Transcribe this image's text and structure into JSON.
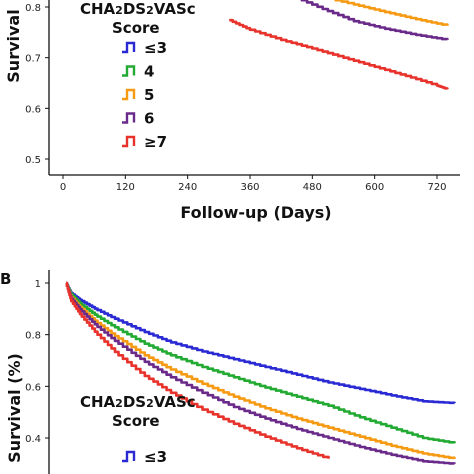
{
  "chart_data": [
    {
      "type": "line",
      "panel_label": "",
      "xlabel": "Follow-up (Days)",
      "ylabel": "Survival",
      "xticks": [
        "0",
        "120",
        "240",
        "360",
        "480",
        "600",
        "720"
      ],
      "yticks": [
        "0.5",
        "0.6",
        "0.7",
        "0.8"
      ],
      "xlim": [
        0,
        740
      ],
      "ylim": [
        0.5,
        0.8
      ],
      "legend_title": "CHA2DS2VASc\nScore",
      "legend_placement": "left",
      "series": [
        {
          "name": "≤3",
          "color": "#2a2ad4",
          "x": [],
          "y": []
        },
        {
          "name": "4",
          "color": "#22aa33",
          "x": [],
          "y": []
        },
        {
          "name": "5",
          "color": "#f59a12",
          "x": [
            490,
            560,
            620,
            680,
            740
          ],
          "y": [
            0.822,
            0.805,
            0.79,
            0.776,
            0.763
          ]
        },
        {
          "name": "6",
          "color": "#6a2a8a",
          "x": [
            440,
            500,
            560,
            620,
            680,
            740
          ],
          "y": [
            0.822,
            0.796,
            0.772,
            0.757,
            0.745,
            0.735
          ]
        },
        {
          "name": "≥7",
          "color": "#e8332c",
          "x": [
            320,
            360,
            420,
            480,
            540,
            600,
            660,
            720,
            740
          ],
          "y": [
            0.774,
            0.755,
            0.735,
            0.718,
            0.7,
            0.682,
            0.664,
            0.645,
            0.638
          ]
        }
      ]
    },
    {
      "type": "line",
      "panel_label": "B",
      "xlabel": "",
      "ylabel": "Survival (%)",
      "yticks": [
        "0.4",
        "0.6",
        "0.8",
        "1"
      ],
      "xlim": [
        0,
        740
      ],
      "ylim": [
        0.3,
        1.05
      ],
      "legend_title": "CHA2DS2VASc\nScore",
      "legend_placement": "left",
      "series": [
        {
          "name": "≤3",
          "color": "#2a2ad4",
          "x": [
            0,
            10,
            30,
            60,
            100,
            150,
            200,
            260,
            320,
            380,
            440,
            500,
            560,
            620,
            680,
            740
          ],
          "y": [
            1.0,
            0.96,
            0.93,
            0.895,
            0.855,
            0.81,
            0.77,
            0.735,
            0.705,
            0.675,
            0.645,
            0.615,
            0.59,
            0.565,
            0.542,
            0.535
          ]
        },
        {
          "name": "4",
          "color": "#22aa33",
          "x": [
            0,
            10,
            30,
            60,
            100,
            150,
            200,
            260,
            320,
            380,
            440,
            500,
            560,
            620,
            680,
            740
          ],
          "y": [
            1.0,
            0.955,
            0.915,
            0.87,
            0.82,
            0.765,
            0.72,
            0.675,
            0.635,
            0.595,
            0.56,
            0.525,
            0.48,
            0.44,
            0.4,
            0.38
          ]
        },
        {
          "name": "5",
          "color": "#f59a12",
          "x": [
            0,
            10,
            30,
            60,
            100,
            150,
            200,
            260,
            320,
            380,
            440,
            500,
            560,
            620,
            680,
            740
          ],
          "y": [
            1.0,
            0.945,
            0.9,
            0.845,
            0.785,
            0.72,
            0.665,
            0.61,
            0.56,
            0.515,
            0.475,
            0.44,
            0.405,
            0.37,
            0.34,
            0.32
          ]
        },
        {
          "name": "6",
          "color": "#6a2a8a",
          "x": [
            0,
            10,
            30,
            60,
            100,
            150,
            200,
            260,
            320,
            380,
            440,
            500,
            560,
            620,
            680,
            740
          ],
          "y": [
            1.0,
            0.94,
            0.89,
            0.83,
            0.765,
            0.695,
            0.635,
            0.575,
            0.52,
            0.475,
            0.435,
            0.4,
            0.365,
            0.335,
            0.31,
            0.3
          ]
        },
        {
          "name": "≥7",
          "color": "#e8332c",
          "x": [
            0,
            10,
            30,
            60,
            100,
            150,
            200,
            260,
            320,
            380,
            440,
            500
          ],
          "y": [
            1.0,
            0.93,
            0.87,
            0.8,
            0.72,
            0.64,
            0.575,
            0.51,
            0.455,
            0.405,
            0.36,
            0.32
          ]
        }
      ]
    }
  ]
}
